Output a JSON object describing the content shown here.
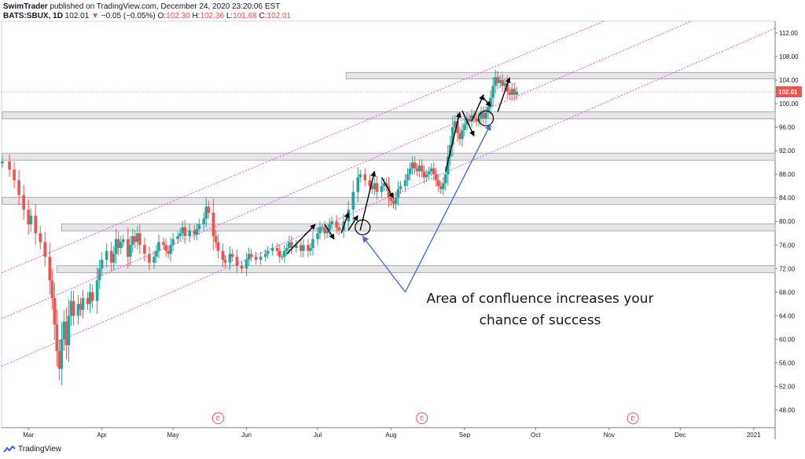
{
  "header": {
    "author": "SwimTrader",
    "published_text": "published on TradingView.com, December 24, 2020 23:20:06 EST",
    "symbol": "BATS:SBUX, 1D",
    "last": "102.01",
    "change_arrow": "▼",
    "change": "−0.05 (−0.05%)",
    "o_label": "O:",
    "o_value": "102.30",
    "h_label": "H:",
    "h_value": "102.36",
    "l_label": "L:",
    "l_value": "101.68",
    "c_label": "C:",
    "c_value": "102.01"
  },
  "footer": {
    "brand": "TradingView"
  },
  "chart_data": {
    "type": "candlestick",
    "symbol": "BATS:SBUX",
    "interval": "1D",
    "ylim": [
      45,
      114
    ],
    "y_ticks": [
      "112.00",
      "108.00",
      "104.00",
      "100.00",
      "96.00",
      "92.00",
      "88.00",
      "84.00",
      "80.00",
      "76.00",
      "72.00",
      "68.00",
      "64.00",
      "60.00",
      "56.00",
      "52.00",
      "48.00"
    ],
    "y_tick_values": [
      112,
      108,
      104,
      100,
      96,
      92,
      88,
      84,
      80,
      76,
      72,
      68,
      64,
      60,
      56,
      52,
      48
    ],
    "x_ticks": [
      "Mar",
      "Apr",
      "May",
      "Jun",
      "Jul",
      "Aug",
      "Sep",
      "Oct",
      "Nov",
      "Dec",
      "2021"
    ],
    "x_tick_days": [
      11,
      42,
      72,
      103,
      133,
      164,
      195,
      225,
      256,
      286,
      317
    ],
    "last_price": "102.01",
    "last_price_value": 102.01,
    "earnings_markers": {
      "label": "E",
      "days": [
        91,
        177,
        266
      ]
    },
    "series": [
      {
        "values": [
          [
            0,
            90.2
          ],
          [
            3,
            88.8
          ],
          [
            5,
            87
          ],
          [
            7,
            84.5
          ],
          [
            9,
            82
          ],
          [
            11,
            79.5
          ],
          [
            12,
            81
          ],
          [
            14,
            78
          ],
          [
            16,
            76.5
          ],
          [
            18,
            74
          ],
          [
            20,
            70
          ],
          [
            21,
            67
          ],
          [
            22,
            62.5
          ],
          [
            23,
            58
          ],
          [
            24,
            55
          ],
          [
            25,
            60
          ],
          [
            26,
            63
          ],
          [
            27,
            59
          ],
          [
            28,
            64
          ],
          [
            29,
            66.5
          ],
          [
            30,
            64
          ],
          [
            32,
            66
          ],
          [
            33,
            65
          ],
          [
            34,
            67
          ],
          [
            36,
            66
          ],
          [
            37,
            68
          ],
          [
            38,
            66.5
          ],
          [
            40,
            70
          ],
          [
            41,
            72
          ],
          [
            42,
            73.5
          ],
          [
            44,
            75
          ],
          [
            46,
            73
          ],
          [
            47,
            74.5
          ],
          [
            48,
            77
          ],
          [
            49,
            75.5
          ],
          [
            50,
            76.5
          ],
          [
            51,
            77
          ],
          [
            53,
            74
          ],
          [
            54,
            76
          ],
          [
            55,
            77.5
          ],
          [
            56,
            76.5
          ],
          [
            57,
            78
          ],
          [
            58,
            76
          ],
          [
            60,
            74.5
          ],
          [
            62,
            73
          ],
          [
            64,
            74
          ],
          [
            65,
            75
          ],
          [
            66,
            76.5
          ],
          [
            68,
            76
          ],
          [
            69,
            75
          ],
          [
            70,
            74.5
          ],
          [
            71,
            76
          ],
          [
            72,
            77
          ],
          [
            74,
            77.5
          ],
          [
            75,
            78
          ],
          [
            76,
            79
          ],
          [
            77,
            77.5
          ],
          [
            79,
            78.5
          ],
          [
            81,
            77.8
          ],
          [
            82,
            78.7
          ],
          [
            83,
            79.5
          ],
          [
            85,
            80.5
          ],
          [
            86,
            82.5
          ],
          [
            87,
            81.5
          ],
          [
            89,
            77.5
          ],
          [
            90,
            76.5
          ],
          [
            91,
            75
          ],
          [
            93,
            73.5
          ],
          [
            94,
            73
          ],
          [
            96,
            74.5
          ],
          [
            97,
            74
          ],
          [
            99,
            72.5
          ],
          [
            101,
            72
          ],
          [
            103,
            73.5
          ],
          [
            104,
            74.5
          ],
          [
            105,
            74
          ],
          [
            107,
            73.5
          ],
          [
            109,
            74
          ],
          [
            111,
            74.5
          ],
          [
            112,
            75
          ],
          [
            114,
            75.5
          ],
          [
            116,
            75
          ],
          [
            117,
            74
          ],
          [
            118,
            74
          ],
          [
            119,
            75
          ],
          [
            120,
            75.5
          ],
          [
            121,
            76.5
          ],
          [
            122,
            75.5
          ],
          [
            124,
            76
          ],
          [
            126,
            75
          ],
          [
            127,
            76
          ],
          [
            129,
            75
          ],
          [
            130,
            75.5
          ],
          [
            131,
            77
          ],
          [
            133,
            78
          ],
          [
            134,
            79
          ],
          [
            135,
            79
          ],
          [
            136,
            78
          ],
          [
            137,
            78.5
          ],
          [
            138,
            79.5
          ],
          [
            139,
            80
          ],
          [
            141,
            79
          ],
          [
            142,
            78.5
          ],
          [
            144,
            80
          ],
          [
            146,
            82
          ],
          [
            148,
            85
          ],
          [
            150,
            87.5
          ],
          [
            151,
            88
          ],
          [
            153,
            87
          ],
          [
            155,
            86
          ],
          [
            156,
            85.5
          ],
          [
            157,
            86.5
          ],
          [
            158,
            85
          ],
          [
            160,
            86
          ],
          [
            161,
            86.5
          ],
          [
            162,
            86
          ],
          [
            163,
            84
          ],
          [
            164,
            83.5
          ],
          [
            165,
            83
          ],
          [
            166,
            84
          ],
          [
            167,
            85.5
          ],
          [
            168,
            86
          ],
          [
            170,
            87
          ],
          [
            171,
            88
          ],
          [
            172,
            89
          ],
          [
            173,
            90
          ],
          [
            174,
            89
          ],
          [
            175,
            88.5
          ],
          [
            176,
            89.5
          ],
          [
            177,
            88.5
          ],
          [
            178,
            87.5
          ],
          [
            179,
            88
          ],
          [
            180,
            88.5
          ],
          [
            181,
            89
          ],
          [
            182,
            88
          ],
          [
            183,
            87
          ],
          [
            184,
            86
          ],
          [
            185,
            85.5
          ],
          [
            186,
            86.5
          ],
          [
            187,
            88
          ],
          [
            188,
            91
          ],
          [
            189,
            93
          ],
          [
            190,
            96
          ],
          [
            191,
            97
          ],
          [
            192,
            95
          ],
          [
            193,
            94
          ],
          [
            194,
            95.5
          ],
          [
            195,
            96.5
          ],
          [
            196,
            97.5
          ],
          [
            197,
            97
          ],
          [
            198,
            98
          ],
          [
            199,
            97.5
          ],
          [
            200,
            97
          ],
          [
            201,
            97.5
          ],
          [
            202,
            98.5
          ],
          [
            203,
            97.5
          ],
          [
            204,
            98.5
          ],
          [
            205,
            99.5
          ],
          [
            206,
            101
          ],
          [
            207,
            103
          ],
          [
            208,
            104.5
          ],
          [
            209,
            103.5
          ],
          [
            210,
            104
          ],
          [
            211,
            103
          ],
          [
            212,
            103.5
          ],
          [
            213,
            102
          ],
          [
            214,
            101.5
          ],
          [
            215,
            102.5
          ],
          [
            216,
            101.5
          ],
          [
            217,
            102.01
          ]
        ]
      }
    ],
    "support_zones": [
      {
        "from_day": 145,
        "to_day": 217,
        "low": 104.2,
        "high": 105.3
      },
      {
        "from_day": 0,
        "to_day": 217,
        "low": 97.4,
        "high": 98.6
      },
      {
        "from_day": 0,
        "to_day": 217,
        "low": 90.4,
        "high": 91.6
      },
      {
        "from_day": 0,
        "to_day": 217,
        "low": 82.9,
        "high": 84.1
      },
      {
        "from_day": 25,
        "to_day": 217,
        "low": 78.4,
        "high": 79.6
      },
      {
        "from_day": 23,
        "to_day": 217,
        "low": 71.3,
        "high": 72.5
      }
    ],
    "channel_lines": [
      {
        "from_day": 0,
        "from_price": 71.3,
        "to_day": 217,
        "to_price": 107.8
      },
      {
        "from_day": 0,
        "from_price": 63.5,
        "to_day": 217,
        "to_price": 101.2
      },
      {
        "from_day": 0,
        "from_price": 55.4,
        "to_day": 217,
        "to_price": 93.6
      }
    ],
    "annotation": {
      "line1": "Area of confluence increases your",
      "line2": "chance of success"
    },
    "trend_arrows": [
      [
        120,
        74.5,
        132,
        79.5
      ],
      [
        136,
        79.5,
        140,
        77
      ],
      [
        143,
        78,
        146,
        81.5
      ],
      [
        146,
        78.5,
        150,
        81
      ],
      [
        151,
        78.5,
        157,
        88.5
      ],
      [
        160,
        87.5,
        165,
        84
      ],
      [
        187,
        88.5,
        193,
        98.5
      ],
      [
        194,
        98.8,
        199,
        94.5
      ],
      [
        198,
        97,
        203,
        101.5
      ],
      [
        203,
        101,
        206,
        99.5
      ],
      [
        209,
        98.6,
        214,
        104.4
      ]
    ],
    "confluence_circles": [
      [
        152,
        79
      ],
      [
        204,
        97.5
      ]
    ],
    "annotation_pointer_arrows": [
      [
        170,
        68,
        152,
        77.5
      ],
      [
        170,
        68,
        206,
        96.5
      ]
    ]
  }
}
